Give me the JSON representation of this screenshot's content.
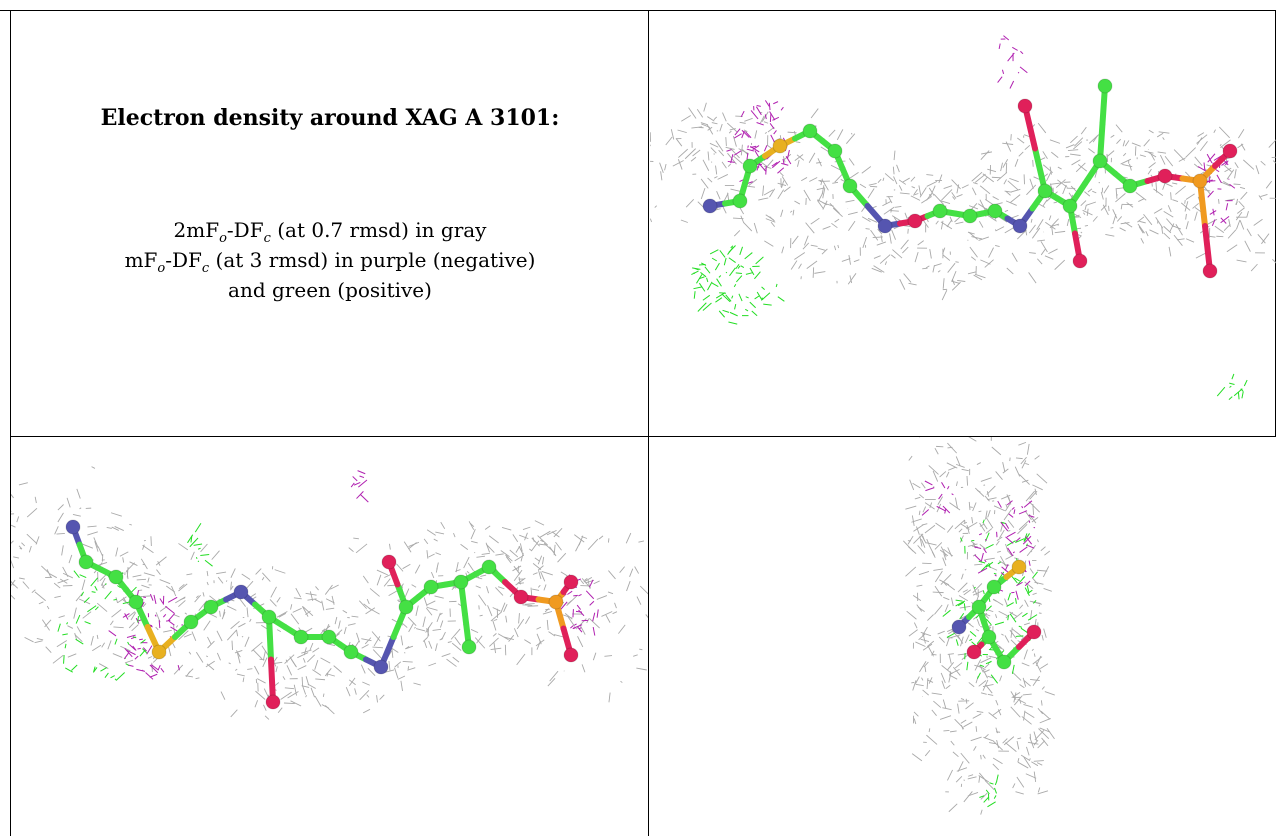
{
  "legend": {
    "title": "Electron density around XAG A 3101:",
    "line1_prefix": "2mF",
    "line1_sub1": "o",
    "line1_mid": "-DF",
    "line1_sub2": "c",
    "line1_suffix": " (at 0.7 rmsd) in gray",
    "line2_prefix": "mF",
    "line2_sub1": "o",
    "line2_mid": "-DF",
    "line2_sub2": "c",
    "line2_suffix": " (at 3 rmsd) in purple (negative)",
    "line3": "and green (positive)"
  },
  "colors": {
    "mesh_gray": "#9a9a9a",
    "negative_purple": "#b020b0",
    "positive_green": "#22dd22",
    "carbon": "#44e044",
    "nitrogen": "#5555b0",
    "oxygen": "#e0205a",
    "sulfur": "#e8b020",
    "phosphorus": "#f09a20"
  }
}
